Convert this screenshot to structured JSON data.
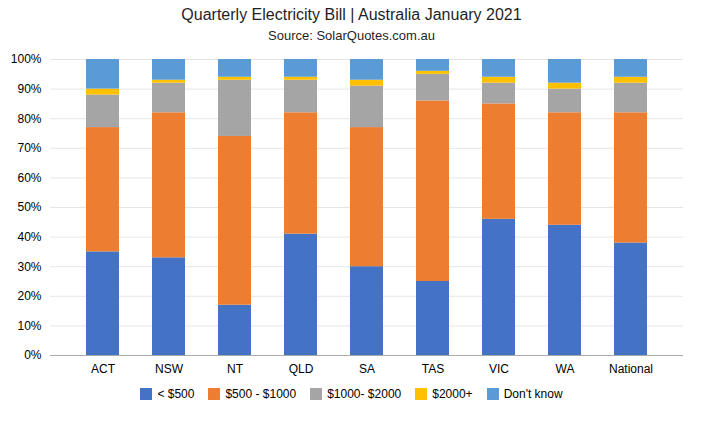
{
  "chart_data": {
    "type": "bar",
    "stacked": true,
    "title": "Quarterly Electricity Bill | Australia January 2021",
    "subtitle": "Source: SolarQuotes.com.au",
    "categories": [
      "ACT",
      "NSW",
      "NT",
      "QLD",
      "SA",
      "TAS",
      "VIC",
      "WA",
      "National"
    ],
    "series": [
      {
        "name": "< $500",
        "color": "#4472c4",
        "values": [
          35,
          33,
          17,
          41,
          30,
          25,
          46,
          44,
          38
        ]
      },
      {
        "name": "$500 - $1000",
        "color": "#ed7d31",
        "values": [
          42,
          49,
          57,
          41,
          47,
          61,
          39,
          38,
          44
        ]
      },
      {
        "name": "$1000- $2000",
        "color": "#a5a5a5",
        "values": [
          11,
          10,
          19,
          11,
          14,
          9,
          7,
          8,
          10
        ]
      },
      {
        "name": "$2000+",
        "color": "#ffc000",
        "values": [
          2,
          1,
          1,
          1,
          2,
          1,
          2,
          2,
          2
        ]
      },
      {
        "name": "Don't know",
        "color": "#5b9bd5",
        "values": [
          10,
          7,
          6,
          6,
          7,
          4,
          6,
          8,
          6
        ]
      }
    ],
    "ylim": [
      0,
      100
    ],
    "yticks": [
      {
        "value": 0,
        "label": "0%"
      },
      {
        "value": 10,
        "label": "10%"
      },
      {
        "value": 20,
        "label": "20%"
      },
      {
        "value": 30,
        "label": "30%"
      },
      {
        "value": 40,
        "label": "40%"
      },
      {
        "value": 50,
        "label": "50%"
      },
      {
        "value": 60,
        "label": "60%"
      },
      {
        "value": 70,
        "label": "70%"
      },
      {
        "value": 80,
        "label": "80%"
      },
      {
        "value": 90,
        "label": "90%"
      },
      {
        "value": 100,
        "label": "100%"
      }
    ],
    "grid": true,
    "legend": "bottom"
  }
}
